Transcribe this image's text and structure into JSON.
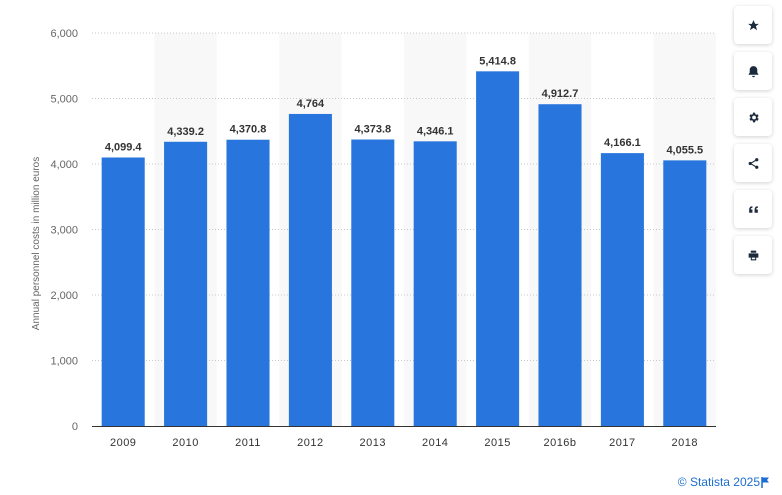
{
  "chart_data": {
    "type": "bar",
    "categories": [
      "2009",
      "2010",
      "2011",
      "2012",
      "2013",
      "2014",
      "2015",
      "2016b",
      "2017",
      "2018"
    ],
    "values": [
      4099.4,
      4339.2,
      4370.8,
      4764,
      4373.8,
      4346.1,
      5414.8,
      4912.7,
      4166.1,
      4055.5
    ],
    "value_labels": [
      "4,099.4",
      "4,339.2",
      "4,370.8",
      "4,764",
      "4,373.8",
      "4,346.1",
      "5,414.8",
      "4,912.7",
      "4,166.1",
      "4,055.5"
    ],
    "ylabel": "Annual personnel costs in million euros",
    "ylim": [
      0,
      6000
    ],
    "yticks": [
      0,
      1000,
      2000,
      3000,
      4000,
      5000,
      6000
    ],
    "ytick_labels": [
      "0",
      "1,000",
      "2,000",
      "3,000",
      "4,000",
      "5,000",
      "6,000"
    ],
    "bar_color": "#2876dd",
    "grid": true
  },
  "toolbar": {
    "buttons": [
      {
        "name": "star-icon"
      },
      {
        "name": "bell-icon"
      },
      {
        "name": "gear-icon"
      },
      {
        "name": "share-icon"
      },
      {
        "name": "quote-icon"
      },
      {
        "name": "print-icon"
      }
    ]
  },
  "footer": {
    "credit": "© Statista 2025"
  }
}
